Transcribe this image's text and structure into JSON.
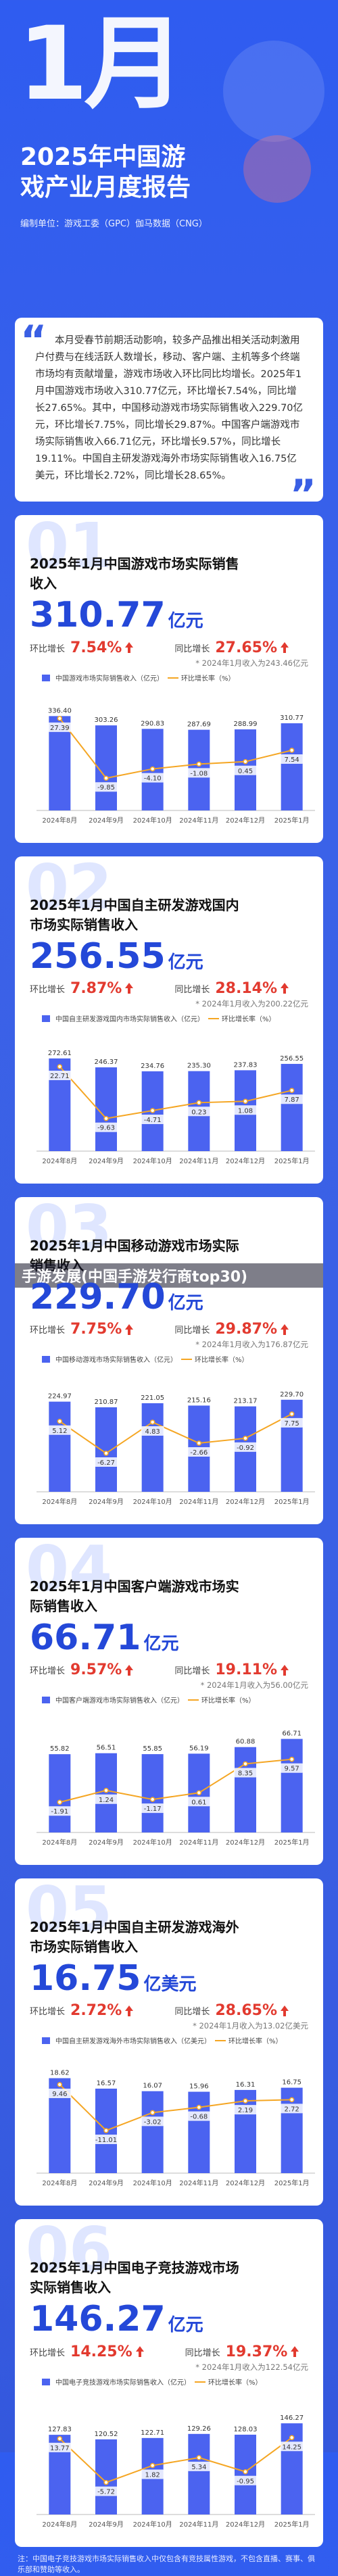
{
  "header": {
    "month": "1月",
    "title": "2025年中国游戏产业月度报告",
    "org": "编制单位：游戏工委（GPC）伽马数据（CNG）"
  },
  "intro": "本月受春节前期活动影响，较多产品推出相关活动刺激用户付费与在线活跃人数增长，移动、客户端、主机等多个终端市场均有贡献增量，游戏市场收入环比同比均增长。2025年1月中国游戏市场收入310.77亿元，环比增长7.54%，同比增长27.65%。其中，中国移动游戏市场实际销售收入229.70亿元，环比增长7.75%，同比增长29.87%。中国客户端游戏市场实际销售收入66.71亿元，环比增长9.57%，同比增长19.11%。中国自主研发游戏海外市场实际销售收入16.75亿美元，环比增长2.72%，同比增长28.65%。",
  "overlay": "手游发展(中国手游发行商top30)",
  "sections": [
    {
      "number": "01",
      "title": "2025年1月中国游戏市场实际销售收入",
      "value": "310.77",
      "unit": "亿元",
      "mom_label": "环比增长",
      "mom": "7.54%",
      "yoy_label": "同比增长",
      "yoy": "27.65%",
      "note": "* 2024年1月收入为243.46亿元"
    },
    {
      "number": "02",
      "title": "2025年1月中国自主研发游戏国内市场实际销售收入",
      "value": "256.55",
      "unit": "亿元",
      "mom_label": "环比增长",
      "mom": "7.87%",
      "yoy_label": "同比增长",
      "yoy": "28.14%",
      "note": "* 2024年1月收入为200.22亿元"
    },
    {
      "number": "03",
      "title": "2025年1月中国移动游戏市场实际销售收入",
      "value": "229.70",
      "unit": "亿元",
      "mom_label": "环比增长",
      "mom": "7.75%",
      "yoy_label": "同比增长",
      "yoy": "29.87%",
      "note": "* 2024年1月收入为176.87亿元"
    },
    {
      "number": "04",
      "title": "2025年1月中国客户端游戏市场实际销售收入",
      "value": "66.71",
      "unit": "亿元",
      "mom_label": "环比增长",
      "mom": "9.57%",
      "yoy_label": "同比增长",
      "yoy": "19.11%",
      "note": "* 2024年1月收入为56.00亿元"
    },
    {
      "number": "05",
      "title": "2025年1月中国自主研发游戏海外市场实际销售收入",
      "value": "16.75",
      "unit": "亿美元",
      "mom_label": "环比增长",
      "mom": "2.72%",
      "yoy_label": "同比增长",
      "yoy": "28.65%",
      "note": "* 2024年1月收入为13.02亿美元"
    },
    {
      "number": "06",
      "title": "2025年1月中国电子竞技游戏市场实际销售收入",
      "value": "146.27",
      "unit": "亿元",
      "mom_label": "环比增长",
      "mom": "14.25%",
      "yoy_label": "同比增长",
      "yoy": "19.37%",
      "note": "* 2024年1月收入为122.54亿元"
    }
  ],
  "footnote": "注：中国电子竞技游戏市场实际销售收入中仅包含有竞技属性游戏，不包含直播、赛事、俱乐部和赞助等收入。",
  "chart_data": [
    {
      "type": "bar",
      "categories": [
        "2024年8月",
        "2024年9月",
        "2024年10月",
        "2024年11月",
        "2024年12月",
        "2025年1月"
      ],
      "ylim": [
        0,
        400
      ],
      "y2lim": [
        -30,
        40
      ],
      "series": [
        {
          "name": "中国游戏市场实际销售收入（亿元）",
          "color": "#4b63f0",
          "values": [
            336.4,
            303.26,
            290.83,
            287.69,
            288.99,
            310.77
          ],
          "value_labels": [
            "336.40",
            "303.26",
            "290.83",
            "287.69",
            "288.99",
            "310.77"
          ]
        },
        {
          "name": "环比增长率（%）",
          "color": "#f5a623",
          "axis": "y2",
          "values": [
            27.39,
            -9.85,
            -4.1,
            -1.08,
            0.45,
            7.54
          ],
          "value_labels": [
            "27.39",
            "-9.85",
            "-4.10",
            "-1.08",
            "0.45",
            "7.54"
          ]
        }
      ]
    },
    {
      "type": "bar",
      "categories": [
        "2024年8月",
        "2024年9月",
        "2024年10月",
        "2024年11月",
        "2024年12月",
        "2025年1月"
      ],
      "ylim": [
        0,
        330
      ],
      "y2lim": [
        -30,
        40
      ],
      "series": [
        {
          "name": "中国自主研发游戏国内市场实际销售收入（亿元）",
          "color": "#4b63f0",
          "values": [
            272.61,
            246.37,
            234.76,
            235.3,
            237.83,
            256.55
          ],
          "value_labels": [
            "272.61",
            "246.37",
            "234.76",
            "235.30",
            "237.83",
            "256.55"
          ]
        },
        {
          "name": "环比增长率（%）",
          "color": "#f5a623",
          "axis": "y2",
          "values": [
            22.71,
            -9.63,
            -4.71,
            0.23,
            1.08,
            7.87
          ],
          "value_labels": [
            "22.71",
            "-9.63",
            "-4.71",
            "0.23",
            "1.08",
            "7.87"
          ]
        }
      ]
    },
    {
      "type": "bar",
      "categories": [
        "2024年8月",
        "2024年9月",
        "2024年10月",
        "2024年11月",
        "2024年12月",
        "2025年1月"
      ],
      "ylim": [
        0,
        280
      ],
      "y2lim": [
        -20,
        20
      ],
      "series": [
        {
          "name": "中国移动游戏市场实际销售收入（亿元）",
          "color": "#4b63f0",
          "values": [
            224.97,
            210.87,
            221.05,
            215.16,
            213.17,
            229.7
          ],
          "value_labels": [
            "224.97",
            "210.87",
            "221.05",
            "215.16",
            "213.17",
            "229.70"
          ]
        },
        {
          "name": "环比增长率（%）",
          "color": "#f5a623",
          "axis": "y2",
          "values": [
            5.12,
            -6.27,
            4.83,
            -2.66,
            -0.92,
            7.75
          ],
          "value_labels": [
            "5.12",
            "-6.27",
            "4.83",
            "-2.66",
            "-0.92",
            "7.75"
          ]
        }
      ]
    },
    {
      "type": "bar",
      "categories": [
        "2024年8月",
        "2024年9月",
        "2024年10月",
        "2024年11月",
        "2024年12月",
        "2025年1月"
      ],
      "ylim": [
        0,
        80
      ],
      "y2lim": [
        -10,
        20
      ],
      "series": [
        {
          "name": "中国客户端游戏市场实际销售收入（亿元）",
          "color": "#4b63f0",
          "values": [
            55.82,
            56.51,
            55.85,
            56.19,
            60.88,
            66.71
          ],
          "value_labels": [
            "55.82",
            "56.51",
            "55.85",
            "56.19",
            "60.88",
            "66.71"
          ]
        },
        {
          "name": "环比增长率（%）",
          "color": "#f5a623",
          "axis": "y2",
          "values": [
            -1.91,
            1.24,
            -1.17,
            0.61,
            8.35,
            9.57
          ],
          "value_labels": [
            "-1.91",
            "1.24",
            "-1.17",
            "0.61",
            "8.35",
            "9.57"
          ]
        }
      ]
    },
    {
      "type": "bar",
      "categories": [
        "2024年8月",
        "2024年9月",
        "2024年10月",
        "2024年11月",
        "2024年12月",
        "2025年1月"
      ],
      "ylim": [
        0,
        22
      ],
      "y2lim": [
        -30,
        20
      ],
      "series": [
        {
          "name": "中国自主研发游戏海外市场实际销售收入（亿美元）",
          "color": "#4b63f0",
          "values": [
            18.62,
            16.57,
            16.07,
            15.96,
            16.31,
            16.75
          ],
          "value_labels": [
            "18.62",
            "16.57",
            "16.07",
            "15.96",
            "16.31",
            "16.75"
          ]
        },
        {
          "name": "环比增长率（%）",
          "color": "#f5a623",
          "axis": "y2",
          "values": [
            9.46,
            -11.01,
            -3.02,
            -0.68,
            2.19,
            2.72
          ],
          "value_labels": [
            "9.46",
            "-11.01",
            "-3.02",
            "-0.68",
            "2.19",
            "2.72"
          ]
        }
      ]
    },
    {
      "type": "bar",
      "categories": [
        "2024年8月",
        "2024年9月",
        "2024年10月",
        "2024年11月",
        "2024年12月",
        "2025年1月"
      ],
      "ylim": [
        0,
        180
      ],
      "y2lim": [
        -20,
        30
      ],
      "series": [
        {
          "name": "中国电子竞技游戏市场实际销售收入（亿元）",
          "color": "#4b63f0",
          "values": [
            127.83,
            120.52,
            122.71,
            129.26,
            128.03,
            146.27
          ],
          "value_labels": [
            "127.83",
            "120.52",
            "122.71",
            "129.26",
            "128.03",
            "146.27"
          ]
        },
        {
          "name": "环比增长率（%）",
          "color": "#f5a623",
          "axis": "y2",
          "values": [
            13.77,
            -5.72,
            1.82,
            5.34,
            -0.95,
            14.25
          ],
          "value_labels": [
            "13.77",
            "-5.72",
            "1.82",
            "5.34",
            "-0.95",
            "14.25"
          ]
        }
      ]
    }
  ]
}
